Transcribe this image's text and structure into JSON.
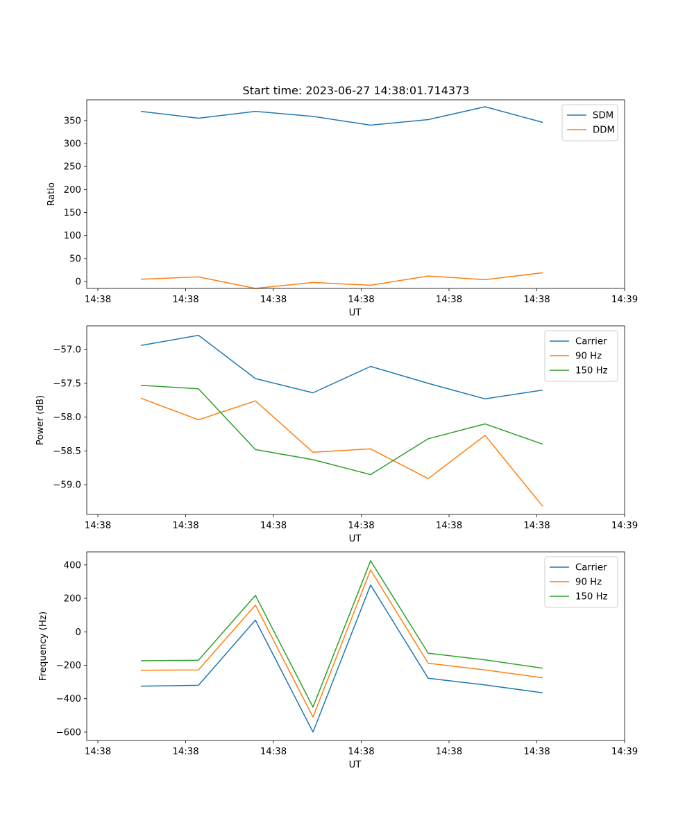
{
  "figure": {
    "title": "Start time: 2023-06-27 14:38:01.714373"
  },
  "chart_data": [
    {
      "type": "line",
      "title": "Start time: 2023-06-27 14:38:01.714373",
      "xlabel": "UT",
      "ylabel": "Ratio",
      "x_ticks": [
        "14:38",
        "14:38",
        "14:38",
        "14:38",
        "14:38",
        "14:38",
        "14:38",
        "14:39"
      ],
      "y_ticks": [
        0,
        50,
        100,
        150,
        200,
        250,
        300,
        350
      ],
      "ylim": [
        -15,
        395
      ],
      "grid": false,
      "legend": "top-right",
      "series": [
        {
          "name": "SDM",
          "color": "#1f77b4",
          "values": [
            370,
            355,
            370,
            359,
            340,
            352,
            380,
            346
          ]
        },
        {
          "name": "DDM",
          "color": "#ff7f0e",
          "values": [
            5,
            10,
            -15,
            -2,
            -8,
            12,
            4,
            19
          ]
        }
      ]
    },
    {
      "type": "line",
      "title": "",
      "xlabel": "UT",
      "ylabel": "Power (dB)",
      "x_ticks": [
        "14:38",
        "14:38",
        "14:38",
        "14:38",
        "14:38",
        "14:38",
        "14:38",
        "14:39"
      ],
      "y_ticks": [
        -57.0,
        -57.5,
        -58.0,
        -58.5,
        -59.0
      ],
      "y_tick_labels": [
        "−57.0",
        "−57.5",
        "−58.0",
        "−58.5",
        "−59.0"
      ],
      "ylim": [
        -59.44,
        -56.65
      ],
      "grid": false,
      "legend": "top-right",
      "series": [
        {
          "name": "Carrier",
          "color": "#1f77b4",
          "values": [
            -56.94,
            -56.79,
            -57.43,
            -57.64,
            -57.25,
            -57.5,
            -57.73,
            -57.6
          ]
        },
        {
          "name": "90 Hz",
          "color": "#ff7f0e",
          "values": [
            -57.72,
            -58.04,
            -57.76,
            -58.52,
            -58.47,
            -58.91,
            -58.27,
            -59.32
          ]
        },
        {
          "name": "150 Hz",
          "color": "#2ca02c",
          "values": [
            -57.53,
            -57.58,
            -58.48,
            -58.63,
            -58.85,
            -58.32,
            -58.1,
            -58.4
          ]
        }
      ]
    },
    {
      "type": "line",
      "title": "",
      "xlabel": "UT",
      "ylabel": "Frequency (Hz)",
      "x_ticks": [
        "14:38",
        "14:38",
        "14:38",
        "14:38",
        "14:38",
        "14:38",
        "14:38",
        "14:39"
      ],
      "y_ticks": [
        400,
        200,
        0,
        -200,
        -400,
        -600
      ],
      "y_tick_labels": [
        "400",
        "200",
        "0",
        "−200",
        "−400",
        "−600"
      ],
      "ylim": [
        -650,
        478
      ],
      "grid": false,
      "legend": "top-right",
      "series": [
        {
          "name": "Carrier",
          "color": "#1f77b4",
          "values": [
            -325,
            -320,
            70,
            -600,
            280,
            -278,
            -318,
            -365
          ]
        },
        {
          "name": "90 Hz",
          "color": "#ff7f0e",
          "values": [
            -230,
            -228,
            160,
            -510,
            370,
            -188,
            -228,
            -275
          ]
        },
        {
          "name": "150 Hz",
          "color": "#2ca02c",
          "values": [
            -173,
            -170,
            218,
            -450,
            425,
            -128,
            -168,
            -218
          ]
        }
      ]
    }
  ]
}
